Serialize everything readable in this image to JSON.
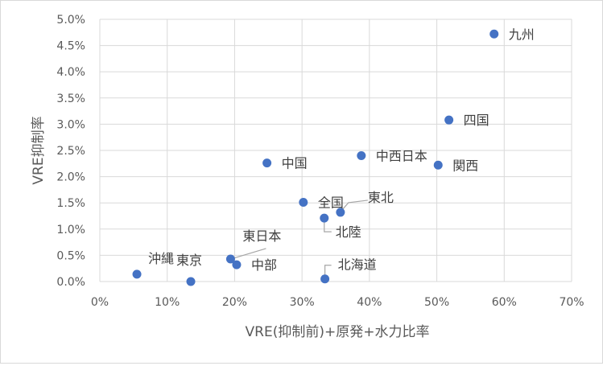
{
  "chart_data": {
    "type": "scatter",
    "xlabel": "VRE(抑制前)+原発+水力比率",
    "ylabel": "VRE抑制率",
    "xlim": [
      0,
      0.7
    ],
    "ylim": [
      0,
      0.05
    ],
    "x_ticks": [
      "0%",
      "10%",
      "20%",
      "30%",
      "40%",
      "50%",
      "60%",
      "70%"
    ],
    "y_ticks": [
      "0.0%",
      "0.5%",
      "1.0%",
      "1.5%",
      "2.0%",
      "2.5%",
      "3.0%",
      "3.5%",
      "4.0%",
      "4.5%",
      "5.0%"
    ],
    "grid": "vertical-and-horizontal",
    "marker_color": "#4472c4",
    "points": [
      {
        "label": "九州",
        "x": 0.585,
        "y": 0.0472
      },
      {
        "label": "四国",
        "x": 0.518,
        "y": 0.0308
      },
      {
        "label": "中西日本",
        "x": 0.388,
        "y": 0.024
      },
      {
        "label": "関西",
        "x": 0.502,
        "y": 0.0222
      },
      {
        "label": "中国",
        "x": 0.248,
        "y": 0.0226
      },
      {
        "label": "全国",
        "x": 0.302,
        "y": 0.0151
      },
      {
        "label": "東北",
        "x": 0.357,
        "y": 0.0132
      },
      {
        "label": "北陸",
        "x": 0.333,
        "y": 0.0121
      },
      {
        "label": "東日本",
        "x": 0.194,
        "y": 0.0043
      },
      {
        "label": "中部",
        "x": 0.203,
        "y": 0.0032
      },
      {
        "label": "沖縄",
        "x": 0.055,
        "y": 0.0014
      },
      {
        "label": "東京",
        "x": 0.135,
        "y": 0.0
      },
      {
        "label": "北海道",
        "x": 0.334,
        "y": 0.0005
      }
    ]
  }
}
